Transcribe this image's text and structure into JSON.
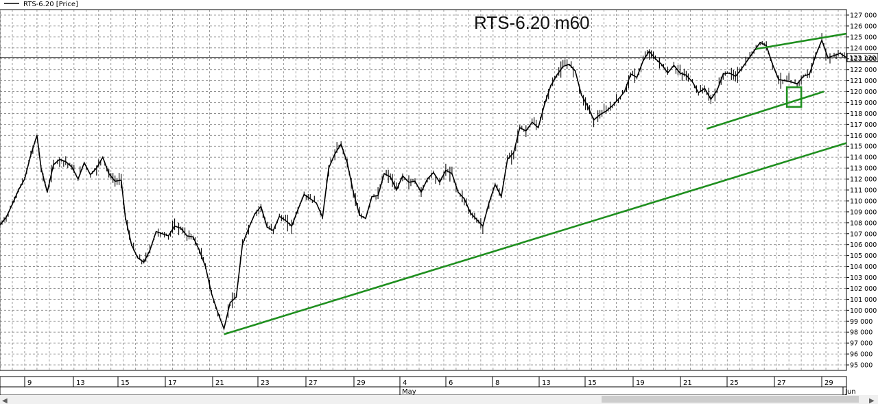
{
  "legend_label": "RTS-6.20 [Price]",
  "chart_data": {
    "type": "line",
    "title": "RTS-6.20 m60",
    "xlabel": "",
    "ylabel": "",
    "grid": true,
    "ylim": [
      94500,
      127500
    ],
    "y_ticks": [
      "95 000",
      "96 000",
      "97 000",
      "98 000",
      "99 000",
      "100 000",
      "101 000",
      "102 000",
      "103 000",
      "104 000",
      "105 000",
      "106 000",
      "107 000",
      "108 000",
      "109 000",
      "110 000",
      "111 000",
      "112 000",
      "113 000",
      "114 000",
      "115 000",
      "116 000",
      "117 000",
      "118 000",
      "119 000",
      "120 000",
      "121 000",
      "122 000",
      "123 000",
      "124 000",
      "125 000",
      "126 000",
      "127 000"
    ],
    "x_tick_labels": [
      "9",
      "13",
      "15",
      "17",
      "21",
      "23",
      "27",
      "29",
      "4",
      "6",
      "8",
      "13",
      "15",
      "19",
      "21",
      "25",
      "27",
      "29"
    ],
    "month_labels": [
      "May",
      "Jun"
    ],
    "last_price": 123120,
    "last_price_label": "123 120",
    "series": [
      {
        "x": [
          0,
          3,
          6,
          9,
          12,
          15,
          18,
          20,
          23,
          26,
          29,
          32,
          35,
          38,
          41,
          44,
          47,
          50,
          53,
          56,
          59,
          61,
          64,
          67,
          70,
          73,
          76,
          79,
          82,
          85,
          88,
          91,
          94,
          97,
          100,
          103,
          106,
          109,
          112,
          115,
          118,
          121,
          124,
          127,
          130,
          133,
          136,
          139,
          142,
          145,
          148,
          151,
          154,
          157,
          160,
          163,
          166,
          169,
          172,
          175,
          178,
          181,
          184,
          187,
          190,
          193,
          196,
          199,
          202,
          205,
          208,
          211,
          214,
          217,
          220,
          223,
          226,
          229,
          232,
          235,
          238,
          241,
          244,
          247,
          250,
          253,
          256
        ],
        "values": [
          107800,
          108500,
          109700,
          111000,
          112000,
          114200,
          116000,
          113000,
          110800,
          113300,
          113800,
          113600,
          113100,
          112000,
          113500,
          112400,
          113000,
          114000,
          112500,
          111800,
          111900,
          108500,
          106000,
          104800,
          104400,
          105500,
          107200,
          107000,
          106800,
          107700,
          107500,
          106800,
          106700,
          105500,
          104000,
          101500,
          99800,
          98300,
          100700,
          101200,
          106000,
          107500,
          108800,
          109500,
          107600,
          107300,
          108600,
          108200,
          107700,
          109200,
          110600,
          110200,
          109800,
          108500,
          113000,
          114300,
          115200,
          113500,
          110800,
          108700,
          108400,
          110400,
          110500,
          112500,
          112200,
          111000,
          112300,
          111700,
          111800,
          110800,
          112000,
          112600,
          111700,
          112800,
          112500,
          110800,
          110200,
          108900,
          108300,
          107700,
          109800,
          111500,
          110400,
          113800,
          114400,
          116700,
          116400
        ]
      },
      {
        "x": [
          256,
          259,
          262,
          265,
          268,
          271,
          274,
          277,
          280,
          283,
          286,
          289,
          292,
          295,
          298,
          301,
          304,
          307,
          310,
          313,
          316,
          319,
          322,
          325,
          328,
          331,
          334,
          337,
          340,
          343,
          346,
          349,
          352,
          355,
          358,
          361,
          364,
          367,
          370,
          373,
          376,
          379,
          382,
          385,
          388,
          391,
          394,
          397,
          400,
          403,
          406,
          409,
          412
        ],
        "values": [
          116400,
          117200,
          116700,
          118800,
          120500,
          121500,
          122300,
          122500,
          121900,
          119700,
          118700,
          117400,
          117900,
          118200,
          118700,
          119300,
          120000,
          121600,
          121300,
          122800,
          123700,
          123000,
          122500,
          121700,
          122400,
          121700,
          121500,
          120900,
          119900,
          120300,
          119300,
          120100,
          121600,
          121700,
          121400,
          122100,
          122900,
          123700,
          124500,
          124200,
          122500,
          121100,
          121000,
          120900,
          120700,
          121400,
          121600,
          123300,
          124700,
          123100,
          123300,
          123500,
          123100
        ]
      }
    ],
    "trendlines": [
      {
        "x": [
          109,
          412
        ],
        "values": [
          97800,
          115300
        ]
      },
      {
        "x": [
          344,
          401
        ],
        "values": [
          116600,
          120000
        ]
      },
      {
        "x": [
          368,
          412
        ],
        "values": [
          123900,
          125300
        ]
      }
    ],
    "highlight_box": {
      "x": [
        383,
        390
      ],
      "values": [
        118600,
        120400
      ]
    },
    "accent_color": "#1f8f1f",
    "price_color": "#000000"
  }
}
